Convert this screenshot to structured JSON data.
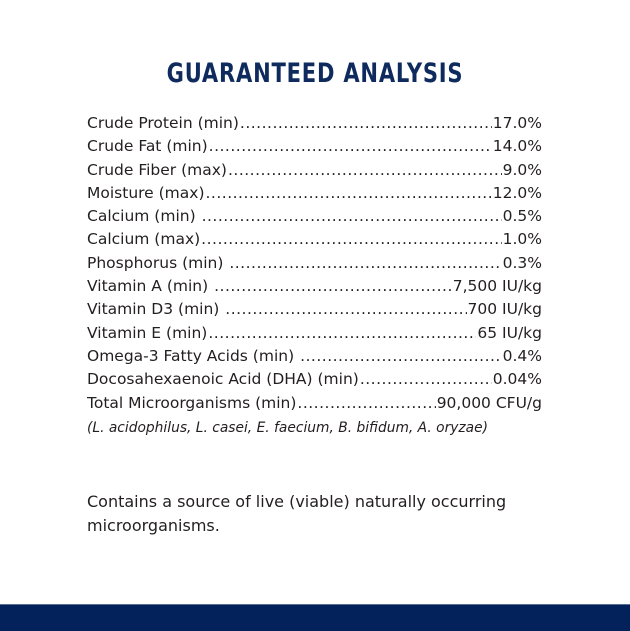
{
  "title": "GUARANTEED ANALYSIS",
  "rows": [
    {
      "label": "Crude Protein (min)",
      "value": "17.0%"
    },
    {
      "label": "Crude Fat (min)",
      "value": "14.0%"
    },
    {
      "label": "Crude Fiber (max)",
      "value": "9.0%"
    },
    {
      "label": "Moisture (max)",
      "value": "12.0%"
    },
    {
      "label": "Calcium (min) ",
      "value": "0.5%"
    },
    {
      "label": "Calcium (max)",
      "value": "1.0%"
    },
    {
      "label": "Phosphorus (min) ",
      "value": "0.3%"
    },
    {
      "label": "Vitamin A (min) ",
      "value": "7,500 IU/kg"
    },
    {
      "label": "Vitamin D3 (min) ",
      "value": "700 IU/kg"
    },
    {
      "label": "Vitamin E (min)",
      "value": "65 IU/kg"
    },
    {
      "label": "Omega-3 Fatty Acids (min) ",
      "value": "0.4%"
    },
    {
      "label": "Docosahexaenoic Acid (DHA) (min)",
      "value": "0.04%"
    },
    {
      "label": "Total Microorganisms (min)",
      "value": "90,000 CFU/g"
    }
  ],
  "note": "(L. acidophilus, L. casei, E. faecium, B. bifidum, A. oryzae)",
  "paragraph": "Contains a source of live (viable) naturally occurring microorganisms.",
  "colors": {
    "title": "#0f2a5c",
    "footer_bar": "#03215b"
  }
}
